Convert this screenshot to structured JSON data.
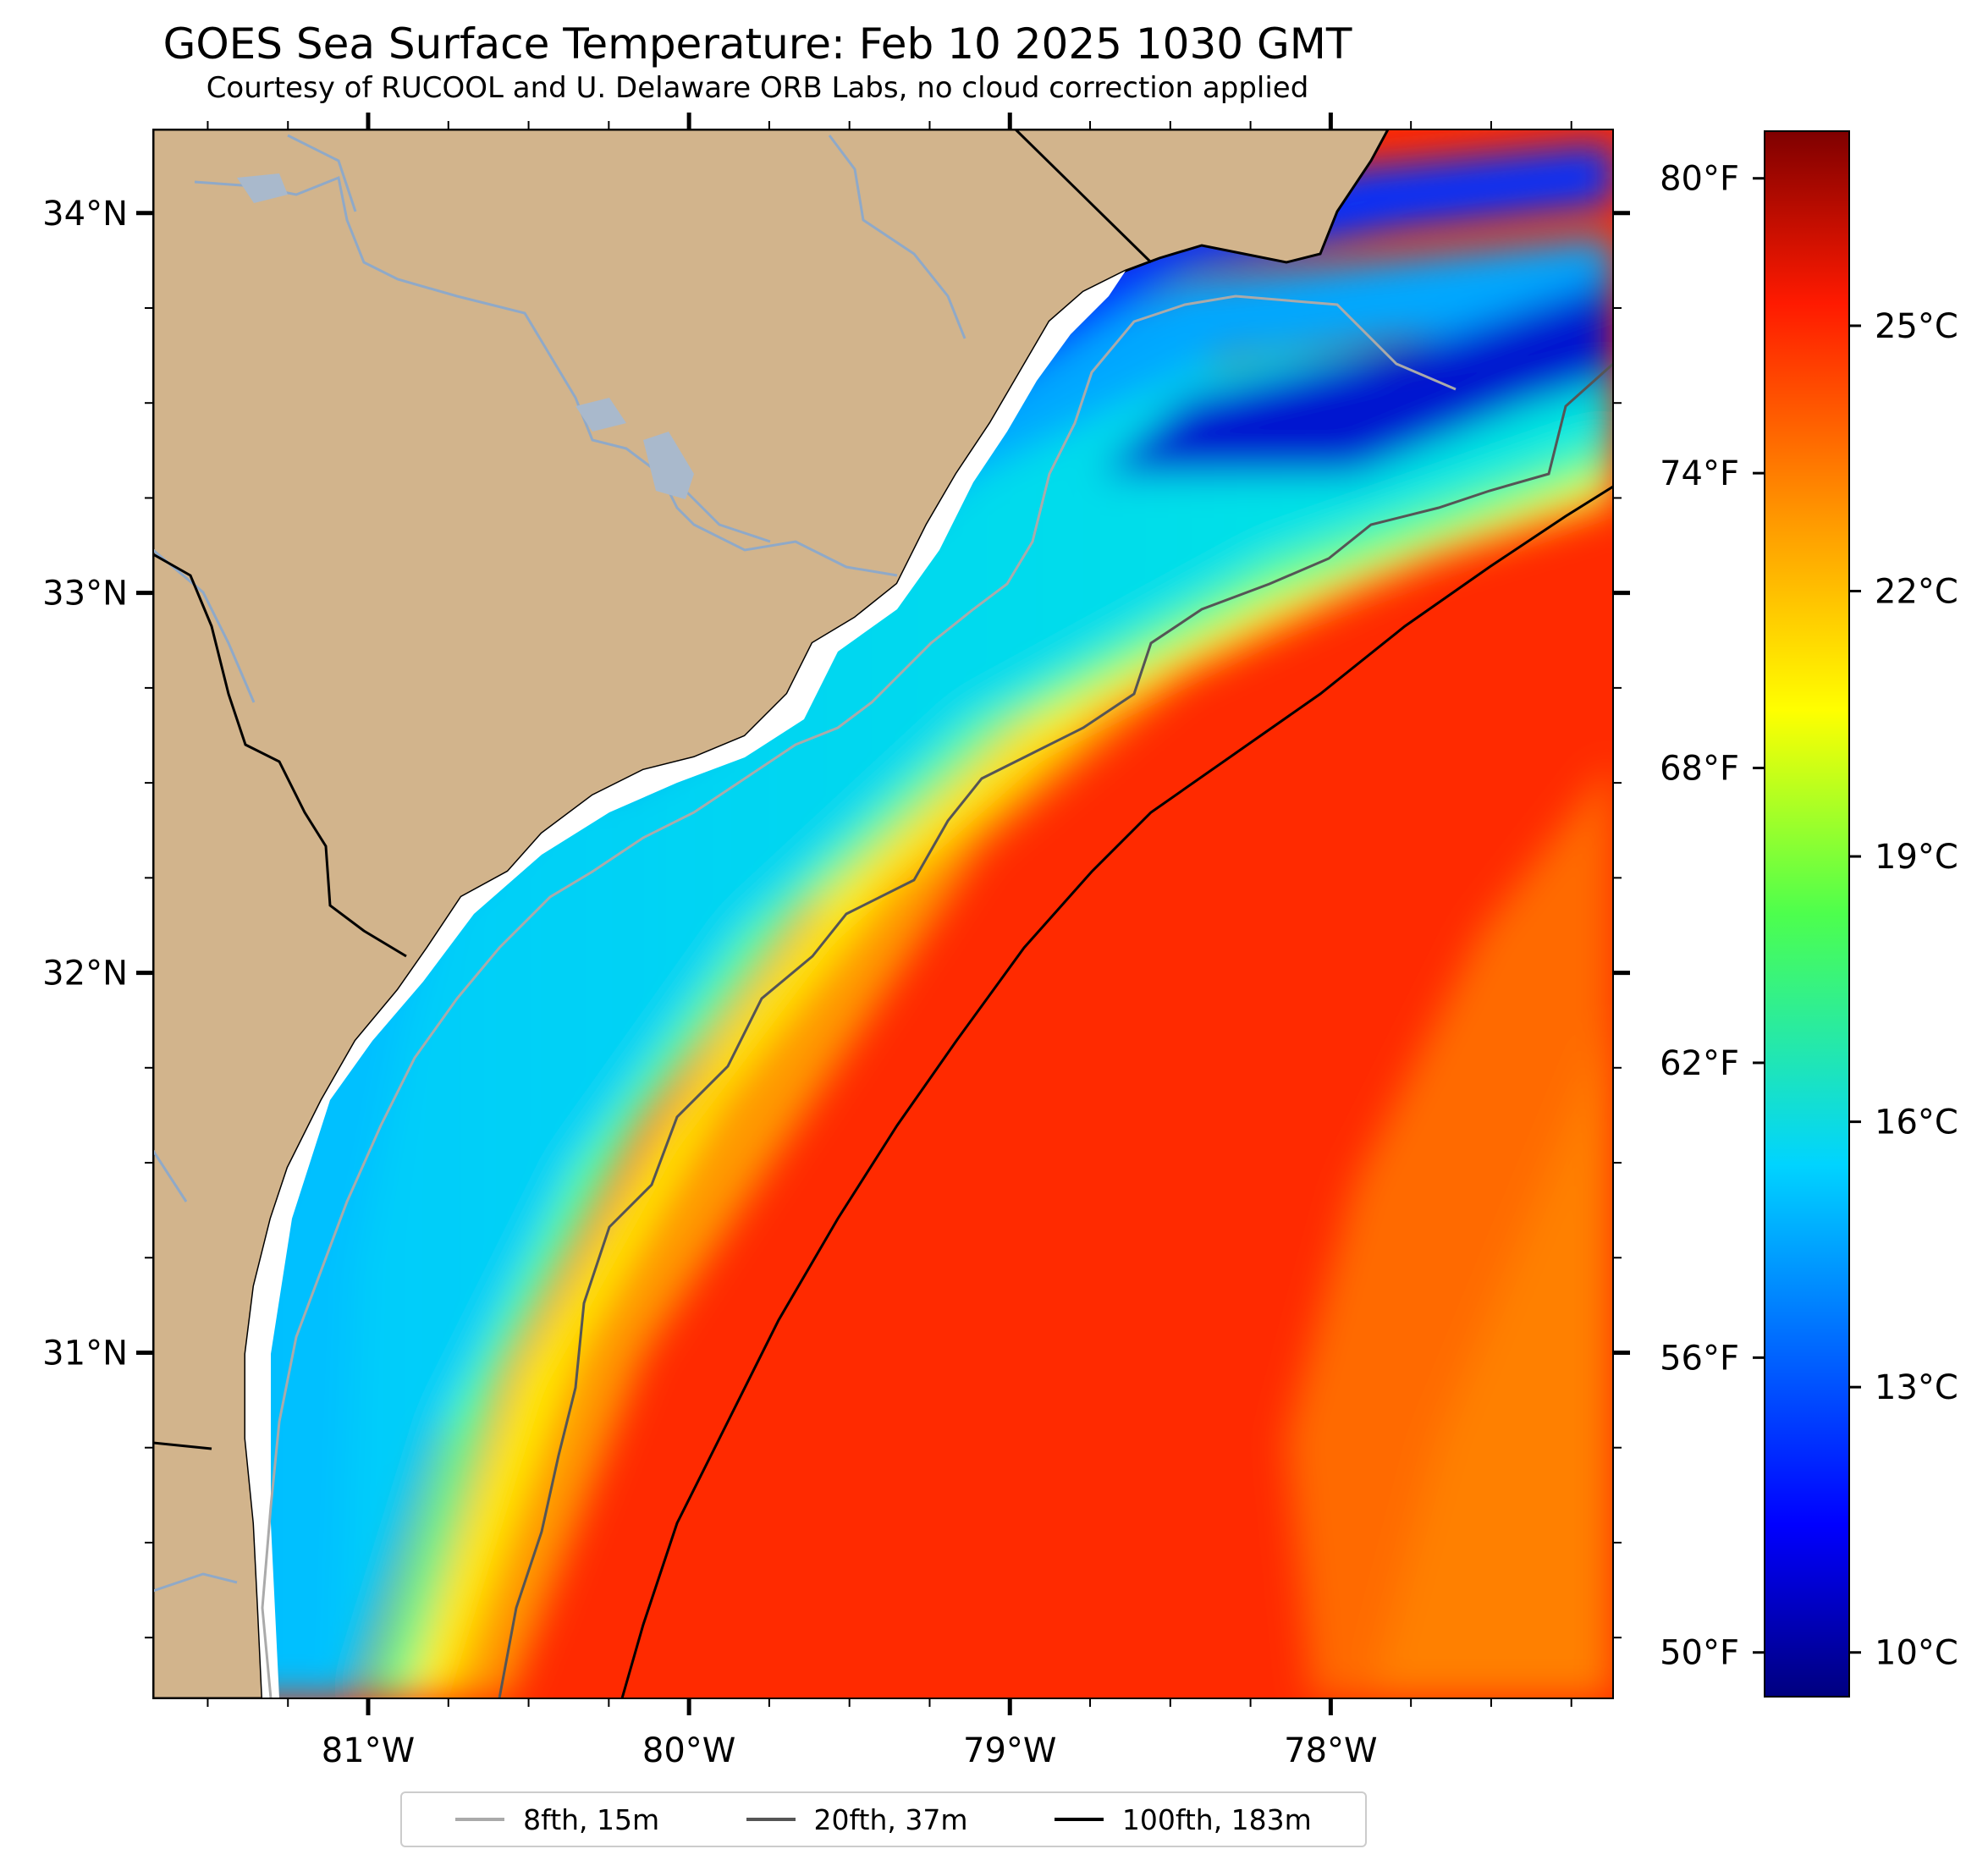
{
  "title": "GOES Sea Surface Temperature: Feb 10 2025 1030 GMT",
  "subtitle": "Courtesy of RUCOOL and U. Delaware ORB Labs, no cloud correction applied",
  "map": {
    "lon_range": [
      -81.67,
      -77.12
    ],
    "lat_range": [
      30.09,
      34.22
    ],
    "lon_ticks": [
      {
        "value": -81,
        "label": "81°W"
      },
      {
        "value": -80,
        "label": "80°W"
      },
      {
        "value": -79,
        "label": "79°W"
      },
      {
        "value": -78,
        "label": "78°W"
      }
    ],
    "lat_ticks": [
      {
        "value": 34,
        "label": "34°N"
      },
      {
        "value": 33,
        "label": "33°N"
      },
      {
        "value": 32,
        "label": "32°N"
      },
      {
        "value": 31,
        "label": "31°N"
      }
    ],
    "colors": {
      "land": "#d2b48c",
      "river": "#8fa9c8",
      "isobath_8fth": "#aaaaaa",
      "isobath_20fth": "#555555",
      "isobath_100fth": "#000000"
    }
  },
  "colorbar": {
    "range_celsius": [
      9.5,
      27.2
    ],
    "celsius_ticks": [
      {
        "value": 25,
        "label": "25°C"
      },
      {
        "value": 22,
        "label": "22°C"
      },
      {
        "value": 19,
        "label": "19°C"
      },
      {
        "value": 16,
        "label": "16°C"
      },
      {
        "value": 13,
        "label": "13°C"
      },
      {
        "value": 10,
        "label": "10°C"
      }
    ],
    "fahrenheit_ticks": [
      {
        "value": 80,
        "label": "80°F"
      },
      {
        "value": 74,
        "label": "74°F"
      },
      {
        "value": 68,
        "label": "68°F"
      },
      {
        "value": 62,
        "label": "62°F"
      },
      {
        "value": 56,
        "label": "56°F"
      },
      {
        "value": 50,
        "label": "50°F"
      }
    ],
    "colormap": "jet"
  },
  "legend": [
    {
      "label": "8fth, 15m",
      "color": "#aaaaaa"
    },
    {
      "label": "20fth, 37m",
      "color": "#555555"
    },
    {
      "label": "100fth, 183m",
      "color": "#000000"
    }
  ]
}
